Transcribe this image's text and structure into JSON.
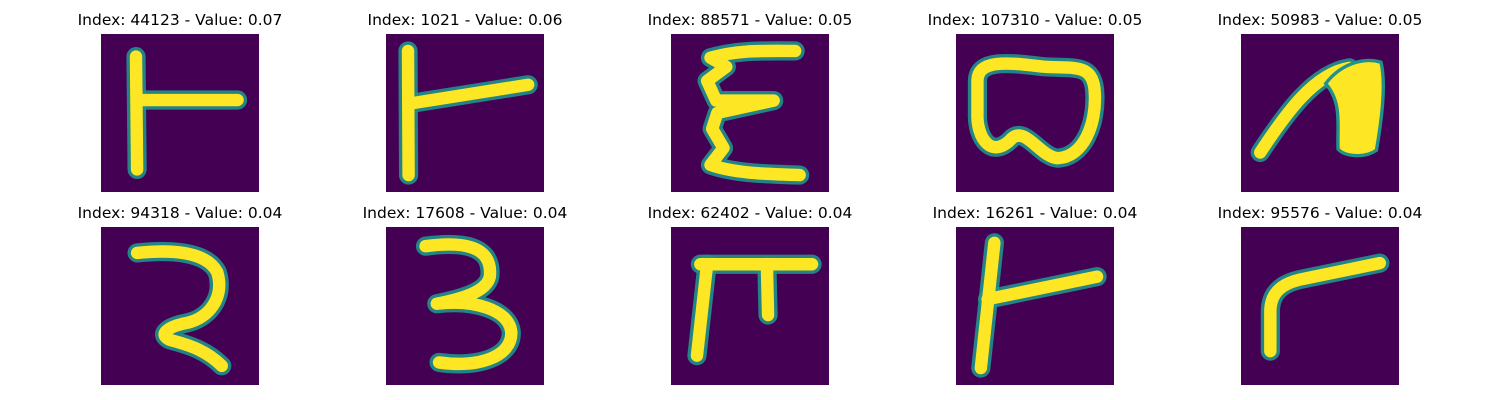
{
  "colors": {
    "background": "#440154",
    "stroke": "#fde725",
    "edge": "#21918c"
  },
  "panels": [
    {
      "title": "Index: 44123 - Value: 0.07",
      "glyph": "digit-like-handwritten-character"
    },
    {
      "title": "Index: 1021 - Value: 0.06",
      "glyph": "digit-like-handwritten-character"
    },
    {
      "title": "Index: 88571 - Value: 0.05",
      "glyph": "digit-like-handwritten-character"
    },
    {
      "title": "Index: 107310 - Value: 0.05",
      "glyph": "digit-like-handwritten-character"
    },
    {
      "title": "Index: 50983 - Value: 0.05",
      "glyph": "digit-like-handwritten-character"
    },
    {
      "title": "Index: 94318 - Value: 0.04",
      "glyph": "digit-like-handwritten-character"
    },
    {
      "title": "Index: 17608 - Value: 0.04",
      "glyph": "digit-like-handwritten-character"
    },
    {
      "title": "Index: 62402 - Value: 0.04",
      "glyph": "digit-like-handwritten-character"
    },
    {
      "title": "Index: 16261 - Value: 0.04",
      "glyph": "digit-like-handwritten-character"
    },
    {
      "title": "Index: 95576 - Value: 0.04",
      "glyph": "digit-like-handwritten-character"
    }
  ]
}
